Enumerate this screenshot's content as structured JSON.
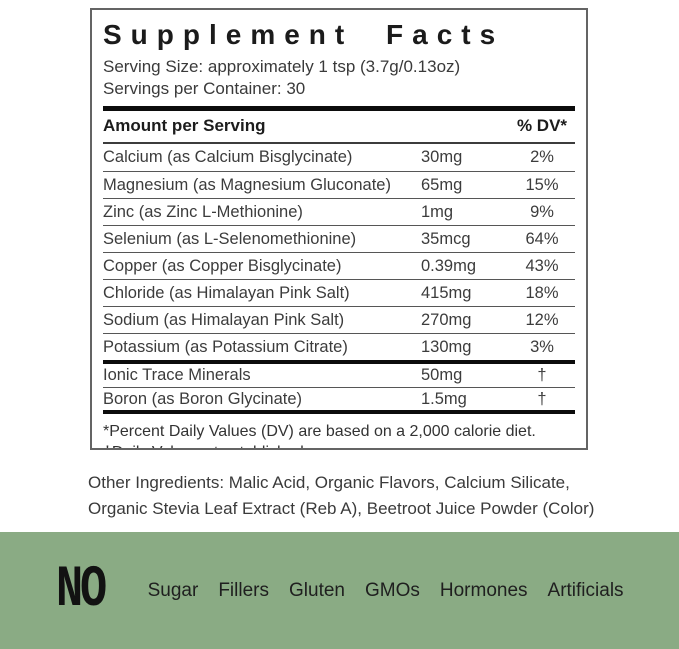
{
  "colors": {
    "green_band": "#8aab84",
    "panel_border": "#646464",
    "text_dark": "#1b1b1b",
    "text_gray": "#3c3c3c"
  },
  "panel": {
    "title": "Supplement Facts",
    "serving_size": "Serving Size: approximately 1 tsp (3.7g/0.13oz)",
    "servings_per_container": "Servings per Container: 30",
    "header": {
      "amount_label": "Amount per Serving",
      "dv_label": "% DV*"
    },
    "rows": [
      {
        "name": "Calcium (as Calcium Bisglycinate)",
        "amount": "30mg",
        "dv": "2%"
      },
      {
        "name": "Magnesium (as Magnesium Gluconate)",
        "amount": "65mg",
        "dv": "15%"
      },
      {
        "name": "Zinc (as Zinc L-Methionine)",
        "amount": "1mg",
        "dv": "9%"
      },
      {
        "name": "Selenium (as L-Selenomethionine)",
        "amount": "35mcg",
        "dv": "64%"
      },
      {
        "name": "Copper (as Copper Bisglycinate)",
        "amount": "0.39mg",
        "dv": "43%"
      },
      {
        "name": "Chloride (as Himalayan Pink Salt)",
        "amount": "415mg",
        "dv": "18%"
      },
      {
        "name": "Sodium (as Himalayan Pink Salt)",
        "amount": "270mg",
        "dv": "12%"
      },
      {
        "name": "Potassium (as Potassium Citrate)",
        "amount": "130mg",
        "dv": "3%"
      },
      {
        "name": "Ionic Trace Minerals",
        "amount": "50mg",
        "dv": "†"
      },
      {
        "name": "Boron (as Boron Glycinate)",
        "amount": "1.5mg",
        "dv": "†"
      }
    ],
    "footnotes": [
      "*Percent Daily Values (DV) are based on a 2,000 calorie diet.",
      "†Daily Value not established."
    ]
  },
  "other_ingredients": {
    "line1": "Other Ingredients: Malic Acid, Organic Flavors, Calcium Silicate,",
    "line2": "Organic Stevia Leaf Extract (Reb A), Beetroot Juice Powder (Color)"
  },
  "no_banner": {
    "no_label": "NO",
    "items": [
      "Sugar",
      "Fillers",
      "Gluten",
      "GMOs",
      "Hormones",
      "Artificials"
    ]
  }
}
